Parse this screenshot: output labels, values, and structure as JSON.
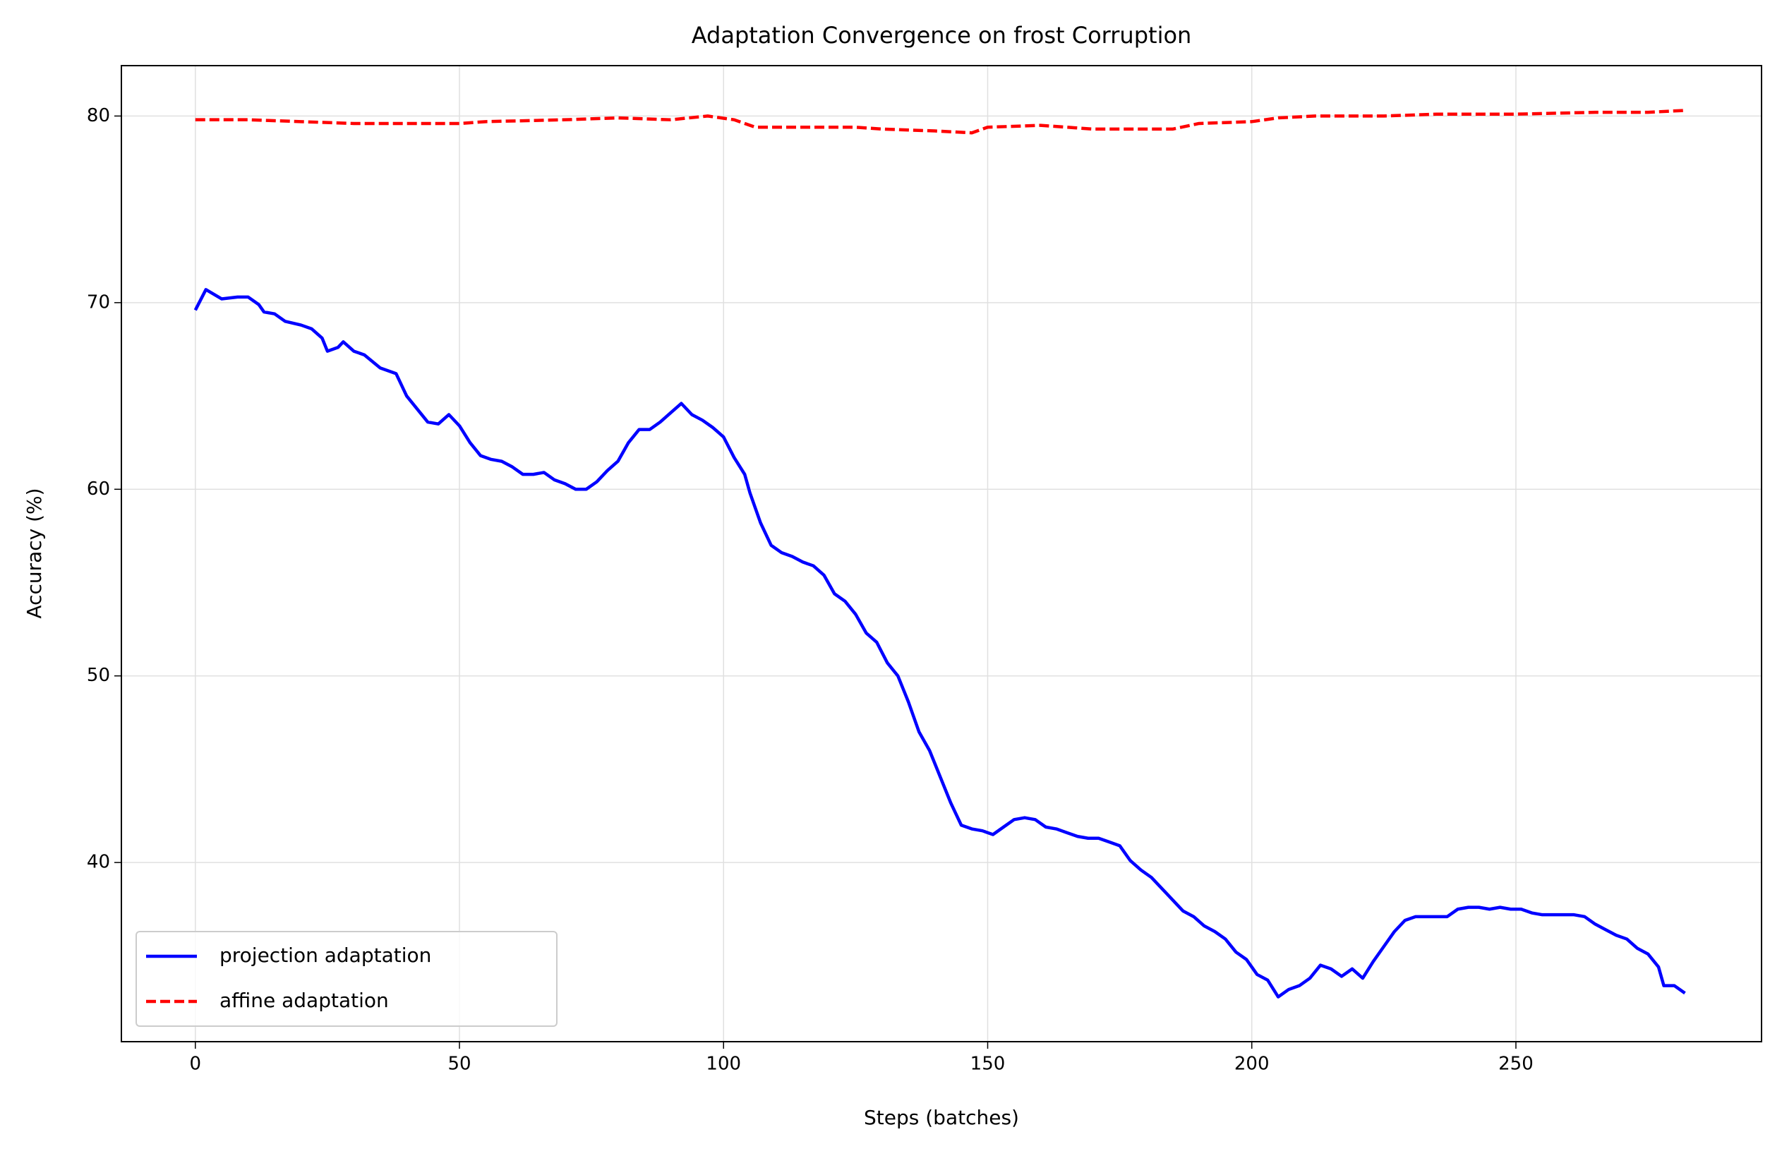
{
  "chart_data": {
    "type": "line",
    "title": "Adaptation Convergence on frost Corruption",
    "xlabel": "Steps (batches)",
    "ylabel": "Accuracy (%)",
    "xlim": [
      -14,
      296.5
    ],
    "ylim": [
      30.4,
      82.7
    ],
    "xticks": [
      0,
      50,
      100,
      150,
      200,
      250
    ],
    "yticks": [
      40,
      50,
      60,
      70,
      80
    ],
    "grid": true,
    "legend": "lower left",
    "series": [
      {
        "name": "projection adaptation",
        "color": "#0000ff",
        "dash": "solid",
        "x": [
          0,
          2,
          5,
          8,
          10,
          12,
          13,
          15,
          17,
          20,
          22,
          24,
          25,
          27,
          28,
          30,
          32,
          35,
          38,
          40,
          42,
          44,
          46,
          48,
          50,
          52,
          54,
          56,
          58,
          60,
          62,
          64,
          66,
          68,
          70,
          72,
          74,
          76,
          78,
          80,
          82,
          84,
          86,
          88,
          90,
          92,
          94,
          96,
          98,
          100,
          102,
          104,
          105,
          107,
          109,
          111,
          113,
          115,
          117,
          119,
          121,
          123,
          125,
          127,
          129,
          131,
          133,
          135,
          137,
          139,
          141,
          143,
          145,
          147,
          149,
          151,
          153,
          155,
          157,
          159,
          161,
          163,
          165,
          167,
          169,
          171,
          173,
          175,
          177,
          179,
          181,
          183,
          185,
          187,
          189,
          191,
          193,
          195,
          197,
          199,
          201,
          203,
          205,
          207,
          209,
          211,
          213,
          215,
          217,
          219,
          221,
          223,
          225,
          227,
          229,
          231,
          233,
          235,
          237,
          239,
          241,
          243,
          245,
          247,
          249,
          251,
          253,
          255,
          257,
          259,
          261,
          263,
          265,
          267,
          269,
          271,
          273,
          275,
          277,
          278,
          280,
          282
        ],
        "values": [
          69.6,
          70.7,
          70.2,
          70.3,
          70.3,
          69.9,
          69.5,
          69.4,
          69.0,
          68.8,
          68.6,
          68.1,
          67.4,
          67.6,
          67.9,
          67.4,
          67.2,
          66.5,
          66.2,
          65.0,
          64.3,
          63.6,
          63.5,
          64.0,
          63.4,
          62.5,
          61.8,
          61.6,
          61.5,
          61.2,
          60.8,
          60.8,
          60.9,
          60.5,
          60.3,
          60.0,
          60.0,
          60.4,
          61.0,
          61.5,
          62.5,
          63.2,
          63.2,
          63.6,
          64.1,
          64.6,
          64.0,
          63.7,
          63.3,
          62.8,
          61.7,
          60.8,
          59.8,
          58.2,
          57.0,
          56.6,
          56.4,
          56.1,
          55.9,
          55.4,
          54.4,
          54.0,
          53.3,
          52.3,
          51.8,
          50.7,
          50.0,
          48.6,
          47.0,
          46.0,
          44.6,
          43.2,
          42.0,
          41.8,
          41.7,
          41.5,
          41.9,
          42.3,
          42.4,
          42.3,
          41.9,
          41.8,
          41.6,
          41.4,
          41.3,
          41.3,
          41.1,
          40.9,
          40.1,
          39.6,
          39.2,
          38.6,
          38.0,
          37.4,
          37.1,
          36.6,
          36.3,
          35.9,
          35.2,
          34.8,
          34.0,
          33.7,
          32.8,
          33.2,
          33.4,
          33.8,
          34.5,
          34.3,
          33.9,
          34.3,
          33.8,
          34.7,
          35.5,
          36.3,
          36.9,
          37.1,
          37.1,
          37.1,
          37.1,
          37.5,
          37.6,
          37.6,
          37.5,
          37.6,
          37.5,
          37.5,
          37.3,
          37.2,
          37.2,
          37.2,
          37.2,
          37.1,
          36.7,
          36.4,
          36.1,
          35.9,
          35.4,
          35.1,
          34.4,
          33.4,
          33.4,
          33.0
        ]
      },
      {
        "name": "affine adaptation",
        "color": "#ff0000",
        "dash": "dashed",
        "x": [
          0,
          10,
          20,
          30,
          40,
          50,
          55,
          70,
          80,
          90,
          97,
          102,
          106,
          115,
          125,
          130,
          140,
          147,
          150,
          160,
          165,
          170,
          180,
          185,
          190,
          200,
          205,
          212,
          225,
          235,
          250,
          265,
          275,
          282
        ],
        "values": [
          79.8,
          79.8,
          79.7,
          79.6,
          79.6,
          79.6,
          79.7,
          79.8,
          79.9,
          79.8,
          80.0,
          79.8,
          79.4,
          79.4,
          79.4,
          79.3,
          79.2,
          79.1,
          79.4,
          79.5,
          79.4,
          79.3,
          79.3,
          79.3,
          79.6,
          79.7,
          79.9,
          80.0,
          80.0,
          80.1,
          80.1,
          80.2,
          80.2,
          80.3
        ]
      }
    ]
  }
}
